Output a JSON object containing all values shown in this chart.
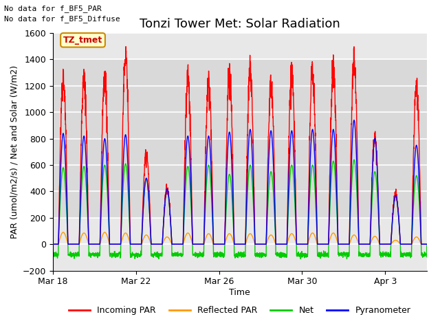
{
  "title": "Tonzi Tower Met: Solar Radiation",
  "xlabel": "Time",
  "ylabel": "PAR (umol/m2/s) / Net and Solar (W/m2)",
  "ylim": [
    -200,
    1600
  ],
  "yticks": [
    -200,
    0,
    200,
    400,
    600,
    800,
    1000,
    1200,
    1400,
    1600
  ],
  "legend_labels": [
    "Incoming PAR",
    "Reflected PAR",
    "Net",
    "Pyranometer"
  ],
  "legend_colors": [
    "#ff0000",
    "#ff9900",
    "#00cc00",
    "#0000ff"
  ],
  "annotation_text1": "No data for f_BF5_PAR",
  "annotation_text2": "No data for f_BF5_Diffuse",
  "box_label": "TZ_tmet",
  "fig_bg_color": "#ffffff",
  "plot_bg_color": "#e8e8e8",
  "shaded_bg_color": "#d8d8d8",
  "grid_color": "#ffffff",
  "title_fontsize": 13,
  "axis_label_fontsize": 9,
  "tick_label_fontsize": 9,
  "xtick_labels": [
    "Mar 18",
    "Mar 22",
    "Mar 26",
    "Mar 30",
    "Apr 3"
  ],
  "xtick_positions": [
    0,
    4,
    8,
    12,
    16
  ],
  "num_days": 18,
  "incoming_par_color": "#ff0000",
  "reflected_par_color": "#ff9900",
  "net_color": "#00cc00",
  "pyranometer_color": "#0000ff",
  "line_width": 1.0,
  "incoming_peaks": [
    1260,
    1250,
    1260,
    1450,
    700,
    420,
    1250,
    1250,
    1270,
    1330,
    1220,
    1300,
    1310,
    1325,
    1420,
    810,
    380,
    1200
  ],
  "reflected_peaks": [
    90,
    85,
    90,
    85,
    70,
    55,
    85,
    80,
    80,
    80,
    70,
    80,
    85,
    85,
    70,
    60,
    30,
    55
  ],
  "pyranometer_peaks": [
    840,
    820,
    800,
    830,
    500,
    420,
    820,
    820,
    850,
    870,
    860,
    860,
    870,
    870,
    940,
    800,
    370,
    750
  ],
  "net_day_peaks": [
    580,
    590,
    600,
    610,
    500,
    400,
    590,
    600,
    530,
    600,
    550,
    600,
    600,
    630,
    640,
    550,
    360,
    520
  ],
  "net_night_val": -80
}
